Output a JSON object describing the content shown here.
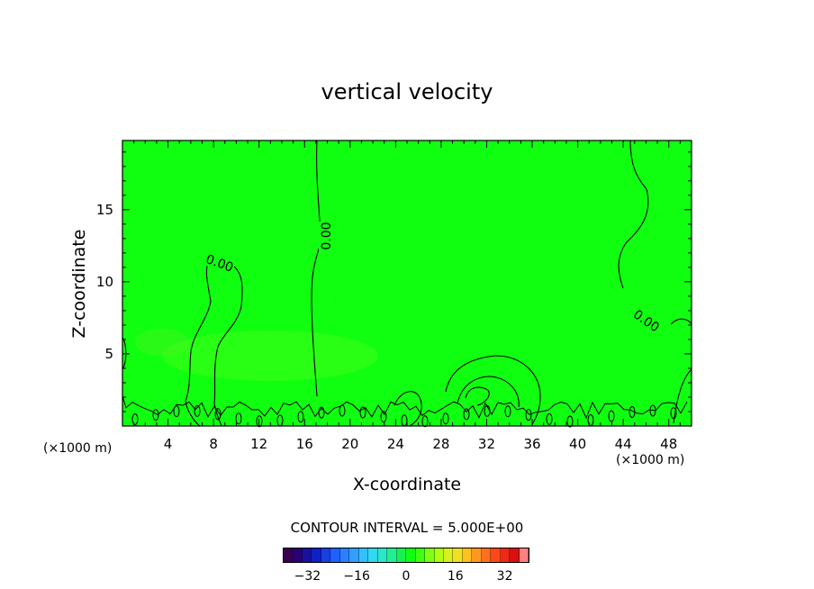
{
  "chart_data": {
    "type": "heatmap",
    "title": "vertical velocity",
    "xlabel": "X-coordinate",
    "ylabel": "Z-coordinate",
    "x_unit": "(×1000 m)",
    "z_unit": "(×1000 m)",
    "xlim": [
      0,
      50
    ],
    "ylim": [
      0,
      19.8
    ],
    "x_ticks": [
      4,
      8,
      12,
      16,
      20,
      24,
      28,
      32,
      36,
      40,
      44,
      48
    ],
    "y_ticks": [
      5,
      10,
      15
    ],
    "field_value": 0,
    "contour_level_labels": [
      "0.00",
      "0.00",
      "0.00"
    ],
    "contour_interval_text": "CONTOUR INTERVAL = 5.000E+00",
    "colorbar": {
      "range": [
        -40,
        40
      ],
      "ticks": [
        -32,
        -16,
        0,
        16,
        32
      ],
      "tick_labels": [
        "−32",
        "−16",
        "0",
        "16",
        "32"
      ],
      "colors": [
        "#3a0050",
        "#2a0078",
        "#1a10a0",
        "#1020c8",
        "#1840e0",
        "#2060ff",
        "#2a80ff",
        "#30a0ff",
        "#34c0ff",
        "#30d8f0",
        "#2ae8c8",
        "#20f090",
        "#18f050",
        "#10ff10",
        "#40ff10",
        "#80ff10",
        "#b0ff10",
        "#d8f020",
        "#f0e020",
        "#ffc020",
        "#ff9820",
        "#ff7020",
        "#ff4818",
        "#f02818",
        "#d81010",
        "#ff8080"
      ]
    },
    "field_color": "#10ff10"
  }
}
